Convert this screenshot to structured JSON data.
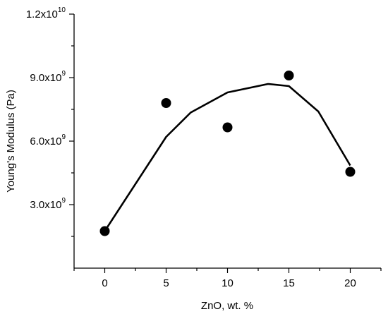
{
  "chart_data": {
    "type": "scatter",
    "title": "",
    "xlabel": "ZnO, wt. %",
    "ylabel": "Young's Modulus (Pa)",
    "xlim": [
      -2.5,
      22.5
    ],
    "ylim": [
      0,
      12000000000
    ],
    "x_ticks": [
      0,
      5,
      10,
      15,
      20
    ],
    "x_tick_labels": [
      "0",
      "5",
      "10",
      "15",
      "20"
    ],
    "y_ticks": [
      3000000000,
      6000000000,
      9000000000,
      12000000000
    ],
    "y_tick_labels": [
      {
        "mantissa": "3.0x10",
        "exponent": "9"
      },
      {
        "mantissa": "6.0x10",
        "exponent": "9"
      },
      {
        "mantissa": "9.0x10",
        "exponent": "9"
      },
      {
        "mantissa": "1.2x10",
        "exponent": "10"
      }
    ],
    "grid": false,
    "series": [
      {
        "style": "markers",
        "color": "#000000",
        "x": [
          0,
          5,
          10,
          15,
          20
        ],
        "y": [
          1750000000,
          7800000000,
          6650000000,
          9100000000,
          4550000000
        ]
      },
      {
        "style": "line",
        "color": "#000000",
        "x": [
          0,
          5,
          7,
          10,
          13.3,
          15,
          17.4,
          20
        ],
        "y": [
          1750000000,
          6200000000,
          7350000000,
          8300000000,
          8700000000,
          8600000000,
          7400000000,
          4850000000
        ]
      }
    ]
  }
}
